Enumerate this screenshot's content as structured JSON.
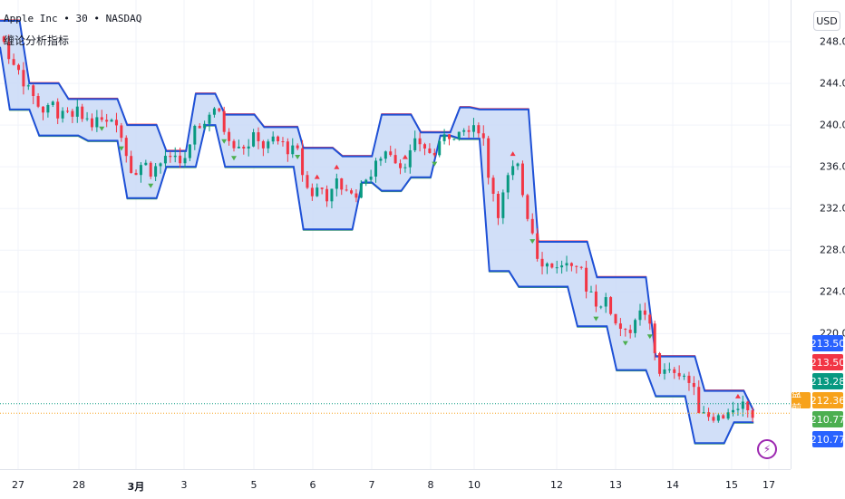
{
  "header": {
    "symbol": "Apple Inc • 30 • NASDAQ",
    "indicator": "缠论分析指标"
  },
  "currency": "USD",
  "price_axis": {
    "labels": [
      "248.00",
      "244.00",
      "240.00",
      "236.00",
      "232.00",
      "228.00",
      "224.00",
      "220.00"
    ],
    "tags": [
      {
        "text": "213.50",
        "color": "#2962ff"
      },
      {
        "text": "213.50",
        "color": "#f23645"
      },
      {
        "text": "213.28",
        "color": "#089981"
      },
      {
        "text": "212.36",
        "color": "#f7a21b"
      },
      {
        "text": "210.77",
        "color": "#4caf50"
      },
      {
        "text": "210.77",
        "color": "#2962ff"
      }
    ],
    "premarket_label": "盘前"
  },
  "time_axis": {
    "labels": [
      "27",
      "28",
      "3月",
      "3",
      "5",
      "6",
      "7",
      "8",
      "10",
      "12",
      "13",
      "14",
      "15",
      "17"
    ]
  },
  "icons": {
    "flash": "lightning-icon"
  },
  "colors": {
    "band_fill": "#c9d9f7",
    "band_line": "#1e50d6",
    "up": "#089981",
    "down": "#f23645",
    "current_price": "#089981",
    "premarket": "#f7a21b"
  },
  "chart_data": {
    "type": "line",
    "ylim": [
      207,
      252
    ],
    "band_upper": [
      [
        0,
        250
      ],
      [
        1,
        250
      ],
      [
        1.5,
        244
      ],
      [
        3,
        244
      ],
      [
        3.5,
        242.5
      ],
      [
        6,
        242.5
      ],
      [
        6.5,
        240
      ],
      [
        8,
        240
      ],
      [
        8.5,
        237.5
      ],
      [
        9.5,
        237.5
      ],
      [
        10,
        243
      ],
      [
        11,
        243
      ],
      [
        11.5,
        241
      ],
      [
        13,
        241
      ],
      [
        13.5,
        239.8
      ],
      [
        15.2,
        239.8
      ],
      [
        15.5,
        237.8
      ],
      [
        17,
        237.8
      ],
      [
        17.5,
        237
      ],
      [
        19,
        237
      ],
      [
        19.5,
        241
      ],
      [
        21,
        241
      ],
      [
        21.5,
        239.3
      ],
      [
        23,
        239.3
      ],
      [
        23.5,
        241.7
      ],
      [
        24,
        241.7
      ],
      [
        24.5,
        241.5
      ],
      [
        27,
        241.5
      ],
      [
        27.5,
        228.8
      ],
      [
        30,
        228.8
      ],
      [
        30.5,
        225.4
      ],
      [
        33,
        225.4
      ],
      [
        33.5,
        217.8
      ],
      [
        35.5,
        217.8
      ],
      [
        36,
        214.5
      ],
      [
        38,
        214.5
      ],
      [
        38.5,
        212.6
      ]
    ],
    "band_lower": [
      [
        0,
        247.5
      ],
      [
        0.5,
        241.5
      ],
      [
        1.5,
        241.5
      ],
      [
        2,
        239
      ],
      [
        4,
        239
      ],
      [
        4.5,
        238.5
      ],
      [
        6,
        238.5
      ],
      [
        6.5,
        233
      ],
      [
        8,
        233
      ],
      [
        8.5,
        236
      ],
      [
        10,
        236
      ],
      [
        10.5,
        240
      ],
      [
        11,
        240
      ],
      [
        11.5,
        236
      ],
      [
        15,
        236
      ],
      [
        15.5,
        230
      ],
      [
        18,
        230
      ],
      [
        18.5,
        234.5
      ],
      [
        19,
        234.5
      ],
      [
        19.5,
        233.7
      ],
      [
        20.5,
        233.7
      ],
      [
        21,
        235
      ],
      [
        22,
        235
      ],
      [
        22.5,
        239
      ],
      [
        23,
        239
      ],
      [
        23.5,
        238.7
      ],
      [
        24.5,
        238.7
      ],
      [
        25,
        226
      ],
      [
        26,
        226
      ],
      [
        26.5,
        224.5
      ],
      [
        29,
        224.5
      ],
      [
        29.5,
        220.7
      ],
      [
        31,
        220.7
      ],
      [
        31.5,
        216.5
      ],
      [
        33,
        216.5
      ],
      [
        33.5,
        214
      ],
      [
        35,
        214
      ],
      [
        35.5,
        209.5
      ],
      [
        37,
        209.5
      ],
      [
        37.5,
        211.5
      ],
      [
        38.5,
        211.5
      ]
    ],
    "xlim": [
      0,
      39
    ]
  }
}
